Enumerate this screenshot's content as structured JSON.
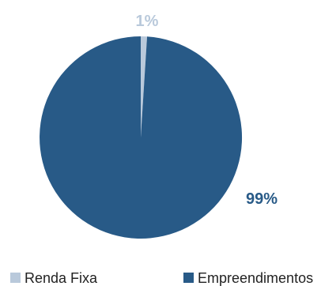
{
  "chart_data": {
    "type": "pie",
    "slices": [
      {
        "label": "Renda Fixa",
        "value": 1,
        "display": "1%",
        "color": "#b9c9db"
      },
      {
        "label": "Empreendimentos",
        "value": 99,
        "display": "99%",
        "color": "#285a87"
      }
    ],
    "legend_position": "bottom",
    "label_colors": {
      "Renda Fixa": "#b9c9db",
      "Empreendimentos": "#285a87"
    }
  }
}
